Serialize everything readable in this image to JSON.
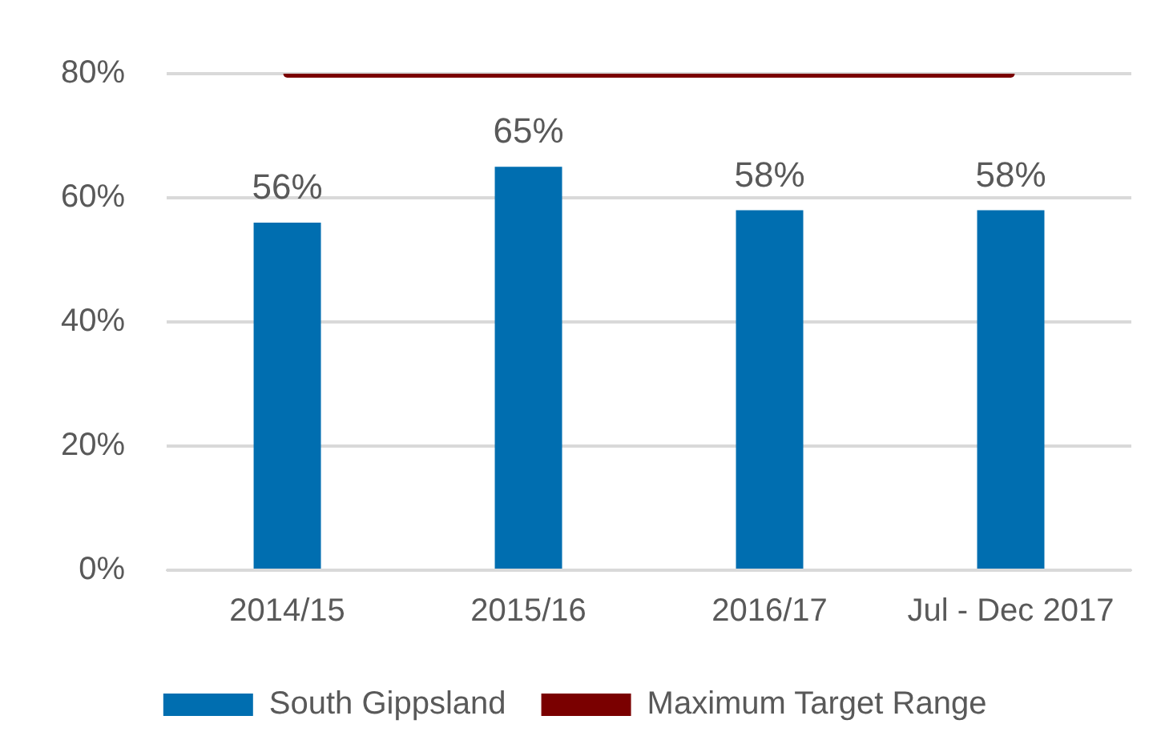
{
  "chart_data": {
    "type": "bar",
    "categories": [
      "2014/15",
      "2015/16",
      "2016/17",
      "Jul - Dec 2017"
    ],
    "series": [
      {
        "name": "South Gippsland",
        "color": "#006eb0",
        "values": [
          56,
          65,
          58,
          58
        ],
        "value_labels": [
          "56%",
          "65%",
          "58%",
          "58%"
        ]
      },
      {
        "name": "Maximum Target Range",
        "type": "line",
        "color": "#7a0000",
        "values": [
          80,
          80,
          80,
          80
        ],
        "marker": "none"
      }
    ],
    "ylim": [
      0,
      80
    ],
    "yticks": [
      {
        "value": 0,
        "label": "0%"
      },
      {
        "value": 20,
        "label": "20%"
      },
      {
        "value": 40,
        "label": "40%"
      },
      {
        "value": 60,
        "label": "60%"
      },
      {
        "value": 80,
        "label": "80%"
      }
    ],
    "grid": "y",
    "legend": "bottom"
  }
}
